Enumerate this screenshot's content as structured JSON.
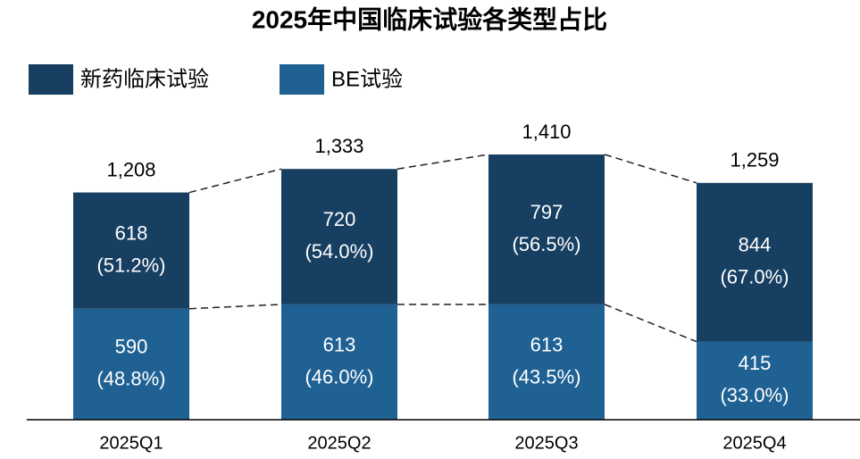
{
  "chart_data": {
    "type": "stacked_bar",
    "title": "2025年中国临床试验各类型占比",
    "categories": [
      "2025Q1",
      "2025Q2",
      "2025Q3",
      "2025Q4"
    ],
    "series": [
      {
        "name": "BE试验",
        "color": "#1f6193",
        "values": [
          590,
          613,
          613,
          415
        ],
        "shares": [
          48.8,
          46.0,
          43.5,
          33.0
        ],
        "share_labels": [
          "(48.8%)",
          "(46.0%)",
          "(43.5%)",
          "(33.0%)"
        ]
      },
      {
        "name": "新药临床试验",
        "color": "#173f62",
        "values": [
          618,
          720,
          797,
          844
        ],
        "shares": [
          51.2,
          54.0,
          56.5,
          67.0
        ],
        "share_labels": [
          "(51.2%)",
          "(54.0%)",
          "(56.5%)",
          "(67.0%)"
        ]
      }
    ],
    "totals": {
      "values": [
        1208,
        1333,
        1410,
        1259
      ],
      "value_labels": [
        "1,208",
        "1,333",
        "1,410",
        "1,259"
      ]
    }
  }
}
